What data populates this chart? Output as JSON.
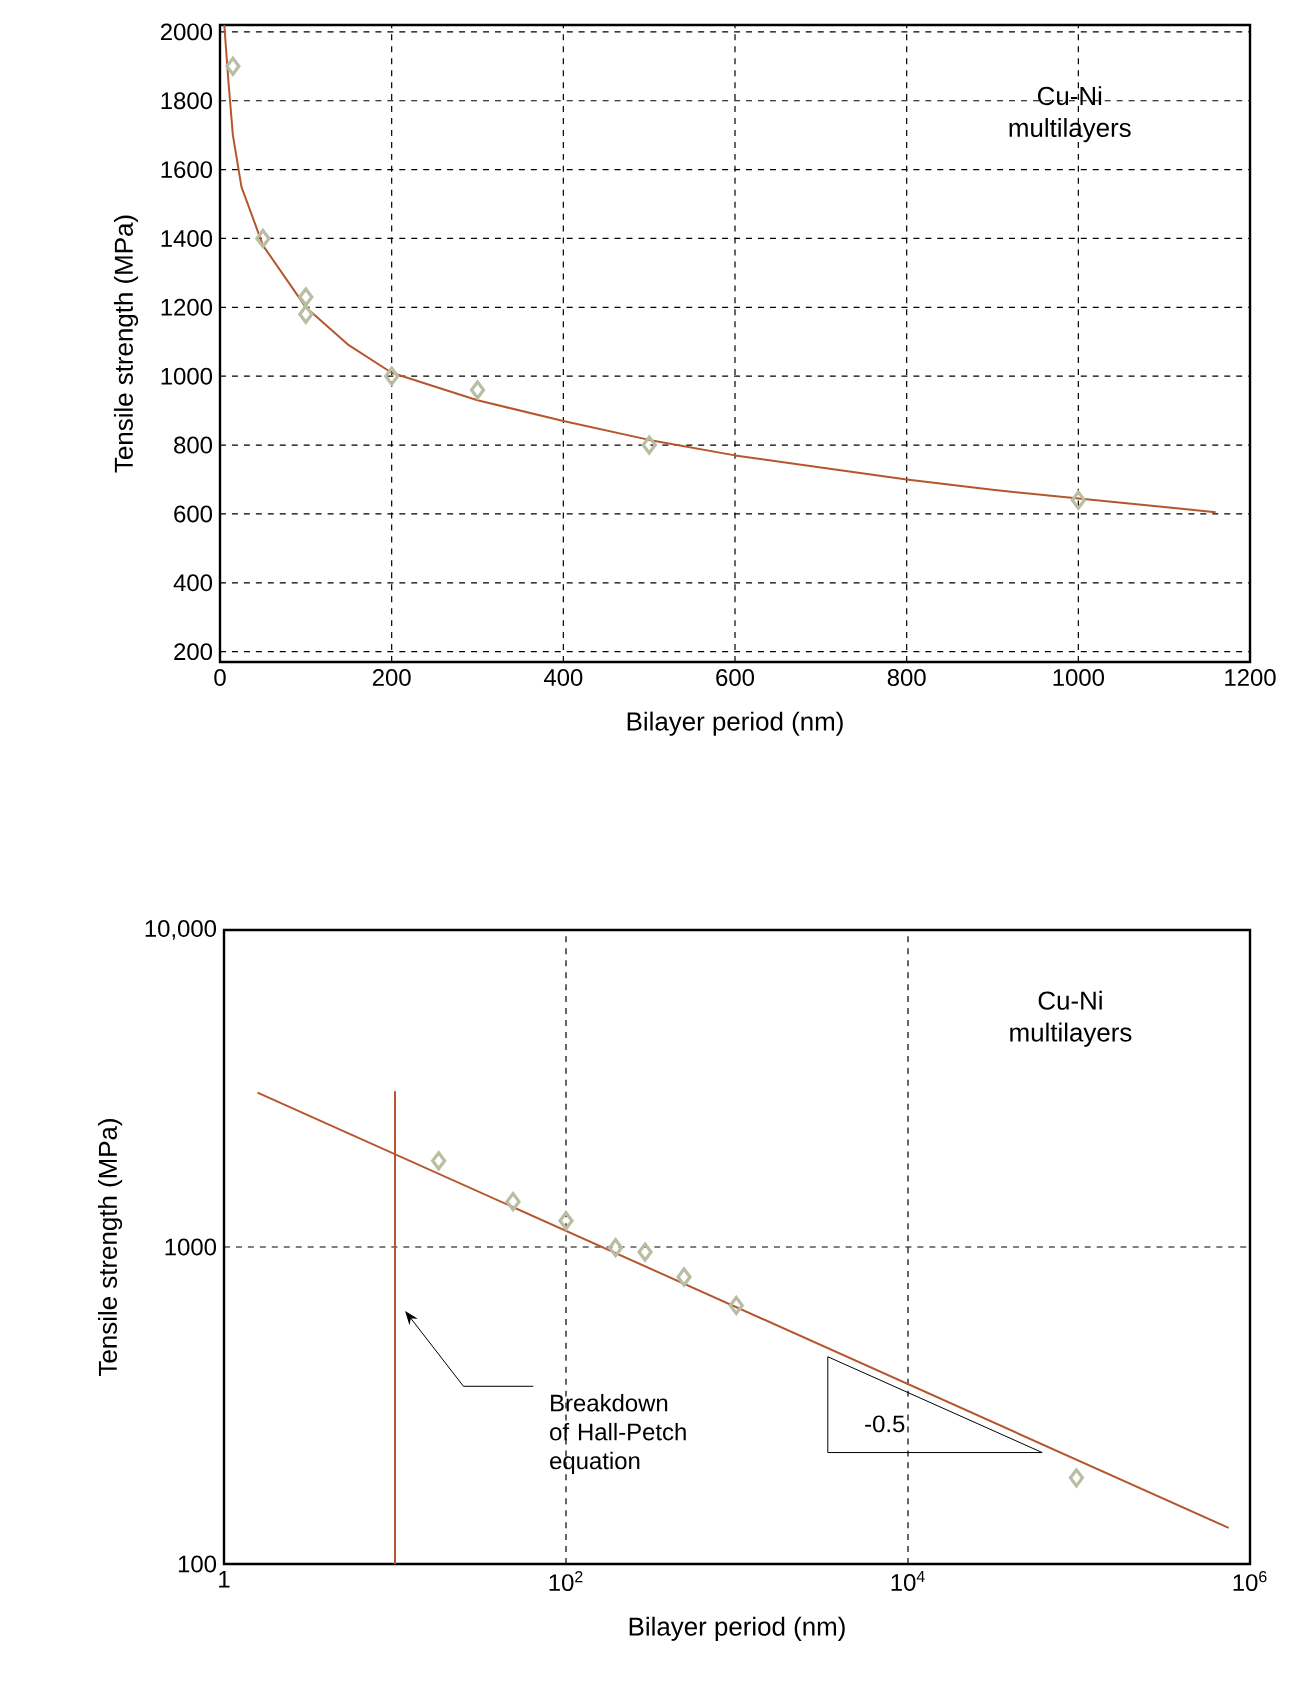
{
  "chart_data": [
    {
      "type": "scatter",
      "xlabel": "Bilayer period (nm)",
      "ylabel": "Tensile strength (MPa)",
      "xlim": [
        0,
        1200
      ],
      "ylim": [
        170,
        2020
      ],
      "xticks": [
        0,
        200,
        400,
        600,
        800,
        1000,
        1200
      ],
      "yticks": [
        200,
        400,
        600,
        800,
        1000,
        1200,
        1400,
        1600,
        1800,
        2000
      ],
      "grid": true,
      "annotations": [
        "Cu-Ni multilayers"
      ],
      "series": [
        {
          "marker": "diamond",
          "color": "#b8bea2",
          "x": [
            15,
            50,
            100,
            100,
            200,
            300,
            500,
            1000
          ],
          "values": [
            1900,
            1400,
            1230,
            1180,
            1000,
            960,
            800,
            640
          ]
        },
        {
          "type": "line",
          "marker": "none",
          "color": "#b5562e",
          "x": [
            5,
            10,
            15,
            25,
            50,
            100,
            150,
            200,
            300,
            400,
            500,
            600,
            700,
            800,
            900,
            1000,
            1100,
            1160
          ],
          "values": [
            2020,
            1850,
            1700,
            1550,
            1380,
            1200,
            1090,
            1010,
            930,
            870,
            815,
            770,
            735,
            700,
            670,
            645,
            620,
            605
          ]
        }
      ]
    },
    {
      "type": "scatter",
      "xlabel": "Bilayer period (nm)",
      "ylabel": "Tensile strength (MPa)",
      "log": "xy",
      "xlim": [
        1,
        1000000
      ],
      "ylim": [
        100,
        10000
      ],
      "xticks": [
        1,
        {
          "value": 100,
          "label": "10$^{2}$"
        },
        {
          "value": 10000,
          "label": "10$^{4}$"
        },
        {
          "value": 1000000,
          "label": "10$^{6}$"
        }
      ],
      "yticks": [
        100,
        1000,
        {
          "value": 10000,
          "label": "10,000"
        }
      ],
      "grid": true,
      "annotations": [
        "Cu-Ni multilayers",
        "Breakdown of Hall-Petch equation",
        "-0.5"
      ],
      "series": [
        {
          "marker": "diamond",
          "color": "#b8bea2",
          "x": [
            18,
            49,
            100,
            195,
            290,
            490,
            990,
            96600
          ],
          "values": [
            1870,
            1390,
            1210,
            995,
            964,
            804,
            654,
            187
          ]
        },
        {
          "type": "line",
          "marker": "none",
          "color": "#b5562e",
          "x": [
            1.57,
            750000
          ],
          "values": [
            3070,
            130
          ]
        },
        {
          "type": "line",
          "marker": "none",
          "color": "#b5562e",
          "x": [
            10,
            10
          ],
          "values": [
            100,
            3100
          ]
        }
      ]
    }
  ]
}
